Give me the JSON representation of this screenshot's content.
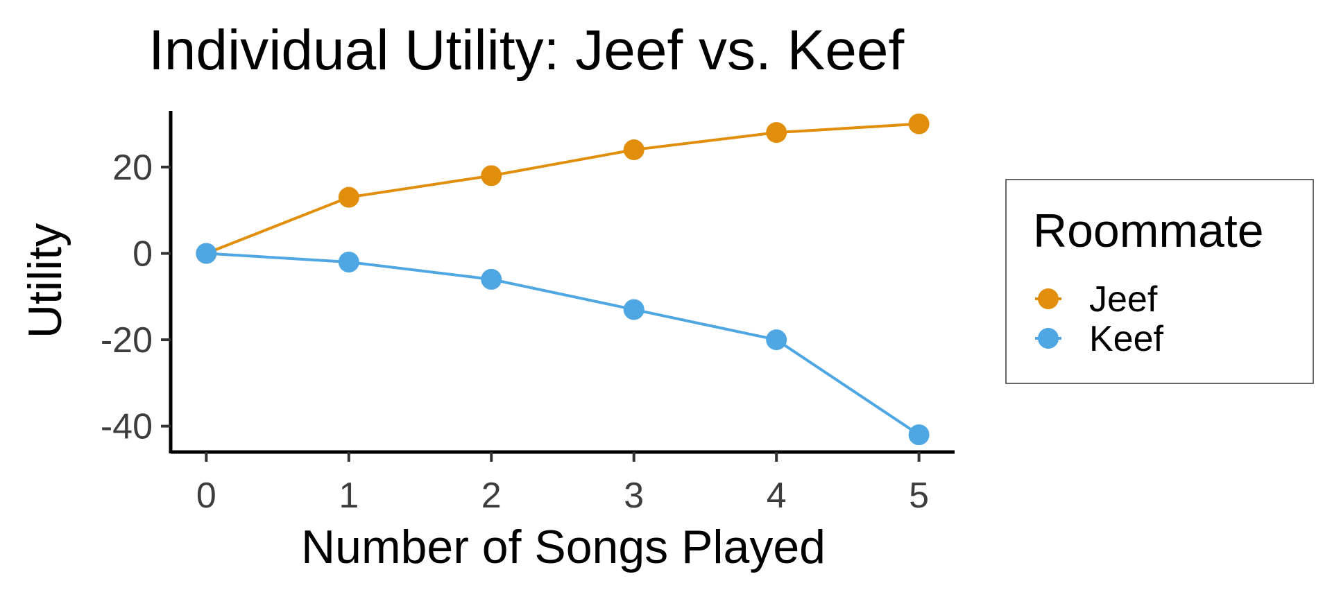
{
  "chart_data": {
    "type": "line",
    "title": "Individual Utility: Jeef vs. Keef",
    "xlabel": "Number of Songs Played",
    "ylabel": "Utility",
    "x": [
      0,
      1,
      2,
      3,
      4,
      5
    ],
    "x_ticks": [
      "0",
      "1",
      "2",
      "3",
      "4",
      "5"
    ],
    "y_ticks": [
      "-40",
      "-20",
      "0",
      "20"
    ],
    "xlim": [
      -0.25,
      5.25
    ],
    "ylim": [
      -46,
      33
    ],
    "grid": false,
    "legend": {
      "title": "Roommate",
      "position": "right"
    },
    "series": [
      {
        "name": "Jeef",
        "color": "#e08e0b",
        "values": [
          0,
          13,
          18,
          24,
          28,
          30
        ]
      },
      {
        "name": "Keef",
        "color": "#4ea6e2",
        "values": [
          0,
          -2,
          -6,
          -13,
          -20,
          -42
        ]
      }
    ]
  }
}
